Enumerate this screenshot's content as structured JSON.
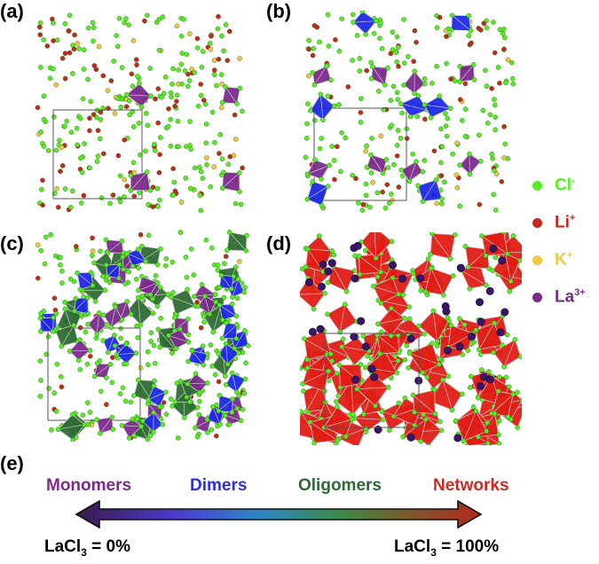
{
  "panels": [
    {
      "label": "(a)"
    },
    {
      "label": "(b)"
    },
    {
      "label": "(c)"
    },
    {
      "label": "(d)"
    },
    {
      "label": "(e)"
    }
  ],
  "legend": [
    {
      "ion": "Cl",
      "charge": "-",
      "color": "#55ee22"
    },
    {
      "ion": "Li",
      "charge": "+",
      "color": "#c42a1c"
    },
    {
      "ion": "K",
      "charge": "+",
      "color": "#f2c744"
    },
    {
      "ion": "La",
      "charge": "3+",
      "color": "#7a2c8c"
    }
  ],
  "stages": [
    {
      "text": "Monomers",
      "color": "#7b2a8c"
    },
    {
      "text": "Dimers",
      "color": "#2b2ee6"
    },
    {
      "text": "Oligomers",
      "color": "#2e6b34"
    },
    {
      "text": "Networks",
      "color": "#cc2a20"
    }
  ],
  "composition": {
    "left": {
      "prefix": "LaCl",
      "sub": "3",
      "suffix": " = 0%"
    },
    "right": {
      "prefix": "LaCl",
      "sub": "3",
      "suffix": " = 100%"
    }
  },
  "colors": {
    "monomer_polyhedra": "#7b2a8c",
    "dimer_polyhedra": "#1e28e6",
    "oligomer_polyhedra": "#2e6b34",
    "network_polyhedra": "#e01c14"
  }
}
